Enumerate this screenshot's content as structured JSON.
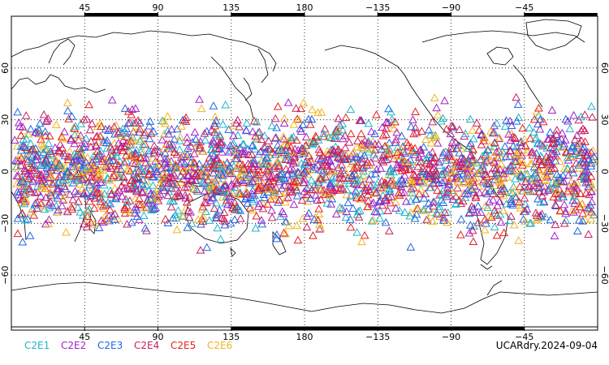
{
  "map": {
    "projection": "cylindrical equidistant",
    "lon_range": [
      0,
      360
    ],
    "lat_range": [
      -90,
      90
    ],
    "lon_ticks": [
      {
        "lon": 45,
        "label": "45"
      },
      {
        "lon": 90,
        "label": "90"
      },
      {
        "lon": 135,
        "label": "135"
      },
      {
        "lon": 180,
        "label": "180"
      },
      {
        "lon": 225,
        "label": "−135"
      },
      {
        "lon": 270,
        "label": "−90"
      },
      {
        "lon": 315,
        "label": "−45"
      }
    ],
    "lat_ticks": [
      {
        "lat": 60,
        "label": "60"
      },
      {
        "lat": 30,
        "label": "30"
      },
      {
        "lat": 0,
        "label": "0"
      },
      {
        "lat": -30,
        "label": "−30"
      },
      {
        "lat": -60,
        "label": "−60"
      }
    ],
    "grid": "dotted",
    "marker": "open-triangle"
  },
  "legend": [
    {
      "name": "C2E1",
      "color": "#1fb4c8"
    },
    {
      "name": "C2E2",
      "color": "#a020c8"
    },
    {
      "name": "C2E3",
      "color": "#1e64e6"
    },
    {
      "name": "C2E4",
      "color": "#c81e64"
    },
    {
      "name": "C2E5",
      "color": "#e61e1e"
    },
    {
      "name": "C2E6",
      "color": "#f0b41e"
    }
  ],
  "date_label": "UCARdry.2024-09-04"
}
